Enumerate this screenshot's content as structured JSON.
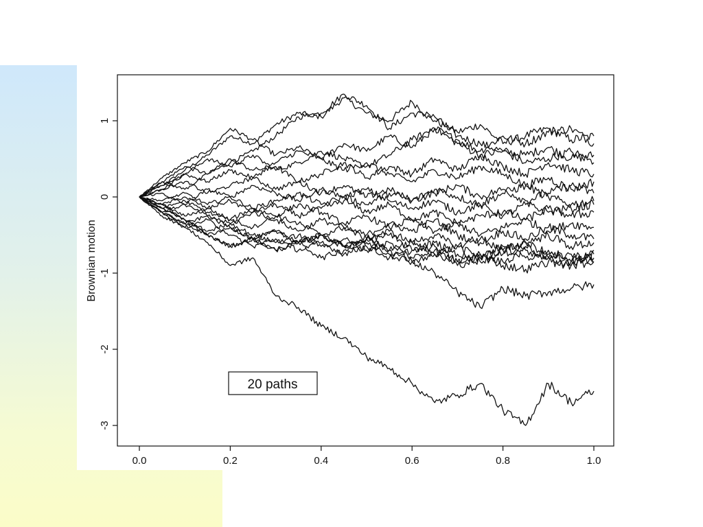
{
  "slide": {
    "decoration_colors": [
      "#cfe8fb",
      "#e2f1ea",
      "#f6fbd2",
      "#fbfcc8"
    ]
  },
  "chart_data": {
    "type": "line",
    "title": "",
    "xlabel": "",
    "ylabel": "Brownian motion",
    "annotation": "20 paths",
    "xlim": [
      0.0,
      1.0
    ],
    "ylim": [
      -3.0,
      1.0
    ],
    "x_ticks": [
      0.0,
      0.2,
      0.4,
      0.6,
      0.8,
      1.0
    ],
    "x_tick_labels": [
      "0.0",
      "0.2",
      "0.4",
      "0.6",
      "0.8",
      "1.0"
    ],
    "y_ticks": [
      -3,
      -2,
      -1,
      0,
      1
    ],
    "y_tick_labels": [
      "-3",
      "-2",
      "-1",
      "0",
      "1"
    ],
    "grid": false,
    "line_color": "#111111",
    "series_count": 20,
    "series": [
      {
        "x": [
          0.0,
          0.05,
          0.1,
          0.15,
          0.2,
          0.25,
          0.3,
          0.35,
          0.4,
          0.45,
          0.5,
          0.55,
          0.6,
          0.65,
          0.7,
          0.75,
          0.8,
          0.85,
          0.9,
          0.95,
          1.0
        ],
        "values": [
          0.0,
          0.15,
          0.35,
          0.55,
          0.8,
          0.7,
          0.95,
          1.1,
          1.05,
          1.3,
          1.1,
          1.0,
          1.25,
          1.0,
          0.85,
          0.95,
          0.7,
          0.8,
          0.9,
          0.75,
          0.8
        ]
      },
      {
        "x": [
          0.0,
          0.05,
          0.1,
          0.15,
          0.2,
          0.25,
          0.3,
          0.35,
          0.4,
          0.45,
          0.5,
          0.55,
          0.6,
          0.65,
          0.7,
          0.75,
          0.8,
          0.85,
          0.9,
          0.95,
          1.0
        ],
        "values": [
          0.0,
          0.2,
          0.4,
          0.3,
          0.45,
          0.6,
          0.8,
          1.05,
          1.1,
          1.35,
          1.2,
          0.9,
          1.1,
          1.05,
          0.8,
          0.7,
          0.6,
          0.55,
          0.65,
          0.5,
          0.55
        ]
      },
      {
        "x": [
          0.0,
          0.05,
          0.1,
          0.15,
          0.2,
          0.25,
          0.3,
          0.35,
          0.4,
          0.45,
          0.5,
          0.55,
          0.6,
          0.65,
          0.7,
          0.75,
          0.8,
          0.85,
          0.9,
          0.95,
          1.0
        ],
        "values": [
          0.0,
          0.25,
          0.45,
          0.6,
          0.9,
          0.75,
          0.55,
          0.65,
          0.5,
          0.7,
          0.6,
          0.8,
          0.65,
          0.9,
          0.75,
          0.6,
          0.8,
          0.7,
          0.85,
          0.9,
          0.7
        ]
      },
      {
        "x": [
          0.0,
          0.05,
          0.1,
          0.15,
          0.2,
          0.25,
          0.3,
          0.35,
          0.4,
          0.45,
          0.5,
          0.55,
          0.6,
          0.65,
          0.7,
          0.75,
          0.8,
          0.85,
          0.9,
          0.95,
          1.0
        ],
        "values": [
          0.0,
          0.1,
          0.3,
          0.5,
          0.4,
          0.55,
          0.35,
          0.45,
          0.6,
          0.5,
          0.4,
          0.55,
          0.75,
          0.9,
          0.7,
          0.55,
          0.6,
          0.45,
          0.5,
          0.6,
          0.45
        ]
      },
      {
        "x": [
          0.0,
          0.05,
          0.1,
          0.15,
          0.2,
          0.25,
          0.3,
          0.35,
          0.4,
          0.45,
          0.5,
          0.55,
          0.6,
          0.65,
          0.7,
          0.75,
          0.8,
          0.85,
          0.9,
          0.95,
          1.0
        ],
        "values": [
          0.0,
          0.2,
          0.1,
          0.3,
          0.5,
          0.35,
          0.4,
          0.2,
          0.3,
          0.45,
          0.25,
          0.4,
          0.3,
          0.5,
          0.35,
          0.55,
          0.4,
          0.3,
          0.45,
          0.35,
          0.3
        ]
      },
      {
        "x": [
          0.0,
          0.05,
          0.1,
          0.15,
          0.2,
          0.25,
          0.3,
          0.35,
          0.4,
          0.45,
          0.5,
          0.55,
          0.6,
          0.65,
          0.7,
          0.75,
          0.8,
          0.85,
          0.9,
          0.95,
          1.0
        ],
        "values": [
          0.0,
          0.15,
          0.3,
          0.2,
          0.35,
          0.25,
          0.45,
          0.6,
          0.5,
          0.35,
          0.45,
          0.3,
          0.2,
          0.35,
          0.25,
          0.4,
          0.3,
          0.15,
          0.25,
          0.1,
          0.2
        ]
      },
      {
        "x": [
          0.0,
          0.05,
          0.1,
          0.15,
          0.2,
          0.25,
          0.3,
          0.35,
          0.4,
          0.45,
          0.5,
          0.55,
          0.6,
          0.65,
          0.7,
          0.75,
          0.8,
          0.85,
          0.9,
          0.95,
          1.0
        ],
        "values": [
          0.0,
          0.1,
          0.2,
          0.05,
          0.15,
          0.25,
          0.1,
          0.2,
          0.05,
          0.15,
          0.0,
          0.1,
          -0.05,
          0.05,
          0.15,
          0.0,
          0.1,
          -0.05,
          0.05,
          0.15,
          0.05
        ]
      },
      {
        "x": [
          0.0,
          0.05,
          0.1,
          0.15,
          0.2,
          0.25,
          0.3,
          0.35,
          0.4,
          0.45,
          0.5,
          0.55,
          0.6,
          0.65,
          0.7,
          0.75,
          0.8,
          0.85,
          0.9,
          0.95,
          1.0
        ],
        "values": [
          0.0,
          0.05,
          -0.1,
          0.1,
          0.0,
          0.15,
          0.05,
          -0.05,
          0.1,
          0.0,
          -0.1,
          0.05,
          -0.05,
          0.1,
          0.0,
          -0.1,
          0.05,
          0.15,
          0.0,
          -0.1,
          -0.05
        ]
      },
      {
        "x": [
          0.0,
          0.05,
          0.1,
          0.15,
          0.2,
          0.25,
          0.3,
          0.35,
          0.4,
          0.45,
          0.5,
          0.55,
          0.6,
          0.65,
          0.7,
          0.75,
          0.8,
          0.85,
          0.9,
          0.95,
          1.0
        ],
        "values": [
          0.0,
          -0.05,
          0.05,
          -0.1,
          0.0,
          -0.15,
          -0.05,
          0.05,
          -0.1,
          0.0,
          0.1,
          -0.05,
          -0.15,
          -0.05,
          -0.2,
          -0.1,
          -0.25,
          -0.1,
          -0.2,
          -0.15,
          -0.1
        ]
      },
      {
        "x": [
          0.0,
          0.05,
          0.1,
          0.15,
          0.2,
          0.25,
          0.3,
          0.35,
          0.4,
          0.45,
          0.5,
          0.55,
          0.6,
          0.65,
          0.7,
          0.75,
          0.8,
          0.85,
          0.9,
          0.95,
          1.0
        ],
        "values": [
          0.0,
          -0.1,
          0.0,
          -0.15,
          -0.05,
          -0.2,
          -0.1,
          -0.25,
          -0.15,
          -0.05,
          -0.2,
          -0.1,
          -0.3,
          -0.2,
          -0.35,
          -0.25,
          -0.2,
          -0.3,
          -0.15,
          -0.25,
          -0.2
        ]
      },
      {
        "x": [
          0.0,
          0.05,
          0.1,
          0.15,
          0.2,
          0.25,
          0.3,
          0.35,
          0.4,
          0.45,
          0.5,
          0.55,
          0.6,
          0.65,
          0.7,
          0.75,
          0.8,
          0.85,
          0.9,
          0.95,
          1.0
        ],
        "values": [
          0.0,
          -0.15,
          -0.05,
          -0.2,
          -0.3,
          -0.15,
          -0.25,
          -0.1,
          -0.2,
          -0.35,
          -0.25,
          -0.4,
          -0.3,
          -0.45,
          -0.35,
          -0.5,
          -0.4,
          -0.3,
          -0.45,
          -0.35,
          -0.4
        ]
      },
      {
        "x": [
          0.0,
          0.05,
          0.1,
          0.15,
          0.2,
          0.25,
          0.3,
          0.35,
          0.4,
          0.45,
          0.5,
          0.55,
          0.6,
          0.65,
          0.7,
          0.75,
          0.8,
          0.85,
          0.9,
          0.95,
          1.0
        ],
        "values": [
          0.0,
          -0.2,
          -0.1,
          -0.25,
          -0.35,
          -0.2,
          -0.3,
          -0.45,
          -0.3,
          -0.4,
          -0.5,
          -0.35,
          -0.45,
          -0.3,
          -0.5,
          -0.6,
          -0.45,
          -0.55,
          -0.4,
          -0.5,
          -0.55
        ]
      },
      {
        "x": [
          0.0,
          0.05,
          0.1,
          0.15,
          0.2,
          0.25,
          0.3,
          0.35,
          0.4,
          0.45,
          0.5,
          0.55,
          0.6,
          0.65,
          0.7,
          0.75,
          0.8,
          0.85,
          0.9,
          0.95,
          1.0
        ],
        "values": [
          0.0,
          -0.1,
          -0.25,
          -0.15,
          -0.3,
          -0.4,
          -0.25,
          -0.35,
          -0.5,
          -0.4,
          -0.55,
          -0.45,
          -0.6,
          -0.5,
          -0.65,
          -0.55,
          -0.7,
          -0.6,
          -0.5,
          -0.65,
          -0.6
        ]
      },
      {
        "x": [
          0.0,
          0.05,
          0.1,
          0.15,
          0.2,
          0.25,
          0.3,
          0.35,
          0.4,
          0.45,
          0.5,
          0.55,
          0.6,
          0.65,
          0.7,
          0.75,
          0.8,
          0.85,
          0.9,
          0.95,
          1.0
        ],
        "values": [
          0.0,
          -0.2,
          -0.35,
          -0.25,
          -0.4,
          -0.55,
          -0.45,
          -0.6,
          -0.5,
          -0.65,
          -0.55,
          -0.7,
          -0.6,
          -0.75,
          -0.65,
          -0.8,
          -0.7,
          -0.6,
          -0.75,
          -0.85,
          -0.7
        ]
      },
      {
        "x": [
          0.0,
          0.05,
          0.1,
          0.15,
          0.2,
          0.25,
          0.3,
          0.35,
          0.4,
          0.45,
          0.5,
          0.55,
          0.6,
          0.65,
          0.7,
          0.75,
          0.8,
          0.85,
          0.9,
          0.95,
          1.0
        ],
        "values": [
          0.0,
          -0.15,
          -0.3,
          -0.45,
          -0.35,
          -0.5,
          -0.6,
          -0.5,
          -0.65,
          -0.55,
          -0.7,
          -0.6,
          -0.8,
          -0.7,
          -0.85,
          -0.75,
          -0.65,
          -0.8,
          -0.7,
          -0.85,
          -0.8
        ]
      },
      {
        "x": [
          0.0,
          0.05,
          0.1,
          0.15,
          0.2,
          0.25,
          0.3,
          0.35,
          0.4,
          0.45,
          0.5,
          0.55,
          0.6,
          0.65,
          0.7,
          0.75,
          0.8,
          0.85,
          0.9,
          0.95,
          1.0
        ],
        "values": [
          0.0,
          -0.25,
          -0.4,
          -0.3,
          -0.5,
          -0.65,
          -0.55,
          -0.7,
          -0.6,
          -0.75,
          -0.65,
          -0.8,
          -0.7,
          -0.6,
          -0.75,
          -0.85,
          -0.75,
          -0.65,
          -0.8,
          -0.75,
          -0.85
        ]
      },
      {
        "x": [
          0.0,
          0.05,
          0.1,
          0.15,
          0.2,
          0.25,
          0.3,
          0.35,
          0.4,
          0.45,
          0.5,
          0.55,
          0.6,
          0.65,
          0.7,
          0.75,
          0.8,
          0.85,
          0.9,
          0.95,
          1.0
        ],
        "values": [
          0.0,
          -0.1,
          -0.3,
          -0.5,
          -0.65,
          -0.55,
          -0.7,
          -0.6,
          -0.8,
          -0.7,
          -0.6,
          -0.75,
          -0.85,
          -0.75,
          -0.9,
          -0.8,
          -0.85,
          -0.7,
          -0.8,
          -0.9,
          -0.75
        ]
      },
      {
        "x": [
          0.0,
          0.05,
          0.1,
          0.15,
          0.2,
          0.25,
          0.3,
          0.35,
          0.4,
          0.45,
          0.5,
          0.55,
          0.6,
          0.65,
          0.7,
          0.75,
          0.8,
          0.85,
          0.9,
          0.95,
          1.0
        ],
        "values": [
          0.0,
          -0.2,
          -0.35,
          -0.5,
          -0.4,
          -0.55,
          -0.45,
          -0.6,
          -0.5,
          -0.65,
          -0.55,
          -0.5,
          -0.7,
          -0.65,
          -0.85,
          -0.75,
          -0.9,
          -0.95,
          -0.85,
          -0.9,
          -0.85
        ]
      },
      {
        "x": [
          0.0,
          0.05,
          0.1,
          0.15,
          0.2,
          0.25,
          0.3,
          0.35,
          0.4,
          0.45,
          0.5,
          0.55,
          0.6,
          0.65,
          0.7,
          0.75,
          0.8,
          0.85,
          0.9,
          0.95,
          1.0
        ],
        "values": [
          0.0,
          -0.15,
          -0.3,
          -0.5,
          -0.65,
          -0.55,
          -0.7,
          -0.6,
          -0.5,
          -0.65,
          -0.55,
          -0.7,
          -0.85,
          -1.0,
          -1.25,
          -1.45,
          -1.2,
          -1.3,
          -1.25,
          -1.2,
          -1.15
        ]
      },
      {
        "x": [
          0.0,
          0.05,
          0.1,
          0.15,
          0.2,
          0.25,
          0.3,
          0.35,
          0.4,
          0.45,
          0.5,
          0.55,
          0.6,
          0.65,
          0.7,
          0.75,
          0.8,
          0.85,
          0.9,
          0.95,
          1.0
        ],
        "values": [
          0.0,
          -0.2,
          -0.4,
          -0.6,
          -0.9,
          -0.8,
          -1.3,
          -1.45,
          -1.7,
          -1.85,
          -2.1,
          -2.25,
          -2.45,
          -2.7,
          -2.6,
          -2.45,
          -2.8,
          -3.0,
          -2.45,
          -2.7,
          -2.55
        ]
      }
    ]
  }
}
